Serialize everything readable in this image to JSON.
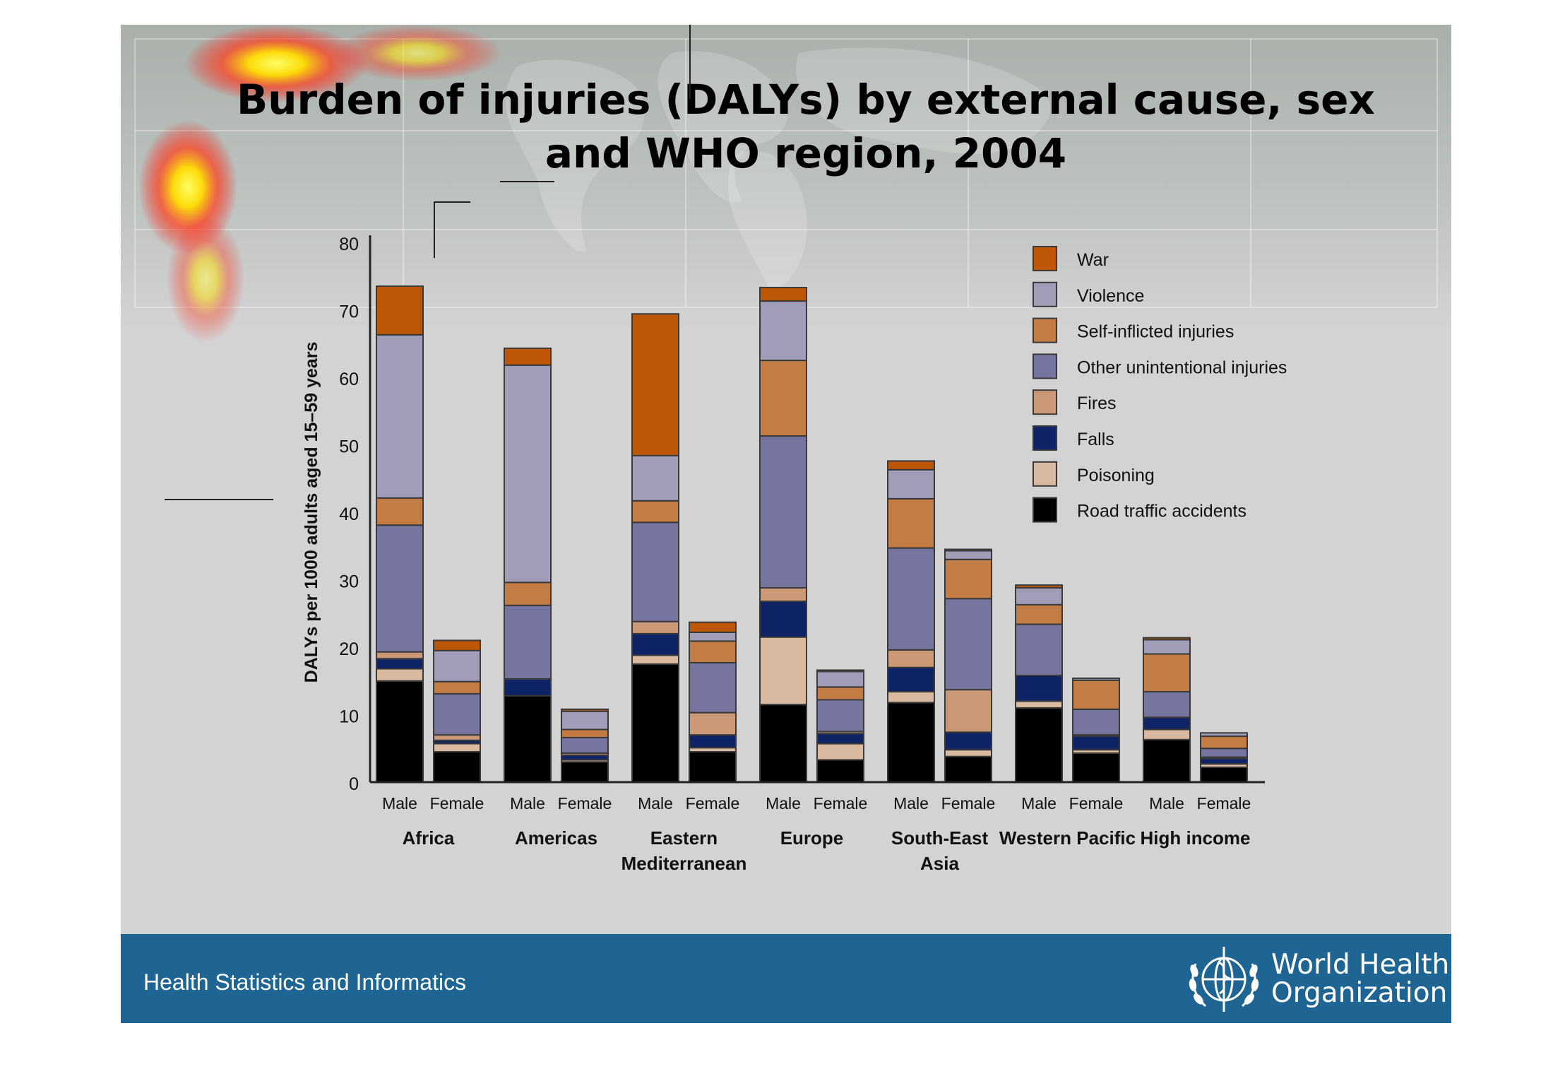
{
  "slide": {
    "title_line1": "Burden of injuries (DALYs) by external cause, sex",
    "title_line2": "and WHO region, 2004",
    "footer_label": "Health Statistics and Informatics",
    "organization_line1": "World Health",
    "organization_line2": "Organization",
    "logo_icon": "who-emblem-icon",
    "accent_color": "#1f6594"
  },
  "chart_data": {
    "type": "bar",
    "stacked": true,
    "ylabel": "DALYs per 1000 adults aged 15–59 years",
    "xlabel": "",
    "ylim": [
      0,
      80
    ],
    "yticks": [
      0,
      10,
      20,
      30,
      40,
      50,
      60,
      70,
      80
    ],
    "groups": [
      {
        "label": [
          "Africa"
        ]
      },
      {
        "label": [
          "Americas"
        ]
      },
      {
        "label": [
          "Eastern",
          "Mediterranean"
        ]
      },
      {
        "label": [
          "Europe"
        ]
      },
      {
        "label": [
          "South-East",
          "Asia"
        ]
      },
      {
        "label": [
          "Western Pacific"
        ]
      },
      {
        "label": [
          "High income"
        ]
      }
    ],
    "categories": [
      "Africa Male",
      "Africa Female",
      "Americas Male",
      "Americas Female",
      "Eastern Mediterranean Male",
      "Eastern Mediterranean Female",
      "Europe Male",
      "Europe Female",
      "South-East Asia Male",
      "South-East Asia Female",
      "Western Pacific Male",
      "Western Pacific Female",
      "High income Male",
      "High income Female"
    ],
    "sex_labels": [
      "Male",
      "Female",
      "Male",
      "Female",
      "Male",
      "Female",
      "Male",
      "Female",
      "Male",
      "Female",
      "Male",
      "Female",
      "Male",
      "Female"
    ],
    "series": [
      {
        "name": "Road traffic accidents",
        "color": "#000000",
        "values": [
          15.0,
          4.5,
          12.8,
          3.0,
          17.5,
          4.5,
          11.5,
          3.3,
          11.8,
          3.8,
          11.0,
          4.3,
          6.3,
          2.2
        ]
      },
      {
        "name": "Poisoning",
        "color": "#d9b9a0",
        "values": [
          1.8,
          1.2,
          0.0,
          0.3,
          1.3,
          0.6,
          10.0,
          2.4,
          1.6,
          1.0,
          1.0,
          0.5,
          1.5,
          0.5
        ]
      },
      {
        "name": "Falls",
        "color": "#0e2467",
        "values": [
          1.5,
          0.5,
          2.5,
          0.7,
          3.2,
          1.9,
          5.3,
          1.5,
          3.6,
          2.6,
          3.8,
          2.0,
          1.8,
          0.8
        ]
      },
      {
        "name": "Fires",
        "color": "#cc9977",
        "values": [
          1.0,
          0.8,
          0.0,
          0.3,
          1.8,
          3.3,
          2.0,
          0.3,
          2.6,
          6.3,
          0.0,
          0.2,
          0.0,
          0.2
        ]
      },
      {
        "name": "Other unintentional injuries",
        "color": "#75759f",
        "values": [
          18.8,
          6.1,
          10.9,
          2.3,
          14.7,
          7.4,
          22.5,
          4.7,
          15.1,
          13.5,
          7.6,
          3.8,
          3.8,
          1.3
        ]
      },
      {
        "name": "Self-inflicted injuries",
        "color": "#c47c45",
        "values": [
          4.0,
          1.8,
          3.4,
          1.2,
          3.2,
          3.2,
          11.2,
          1.9,
          7.3,
          5.8,
          2.9,
          4.3,
          5.6,
          1.8
        ]
      },
      {
        "name": "Violence",
        "color": "#9f9db8",
        "values": [
          24.2,
          4.6,
          32.2,
          2.7,
          6.7,
          1.3,
          8.8,
          2.3,
          4.3,
          1.3,
          2.5,
          0.3,
          2.1,
          0.5
        ]
      },
      {
        "name": "War",
        "color": "#bd5607",
        "values": [
          7.2,
          1.5,
          2.5,
          0.3,
          21.0,
          1.5,
          2.0,
          0.2,
          1.3,
          0.2,
          0.4,
          0.0,
          0.3,
          0.0
        ]
      }
    ],
    "legend": [
      "War",
      "Violence",
      "Self-inflicted injuries",
      "Other unintentional injuries",
      "Fires",
      "Falls",
      "Poisoning",
      "Road traffic accidents"
    ],
    "legend_position": "top-right"
  }
}
